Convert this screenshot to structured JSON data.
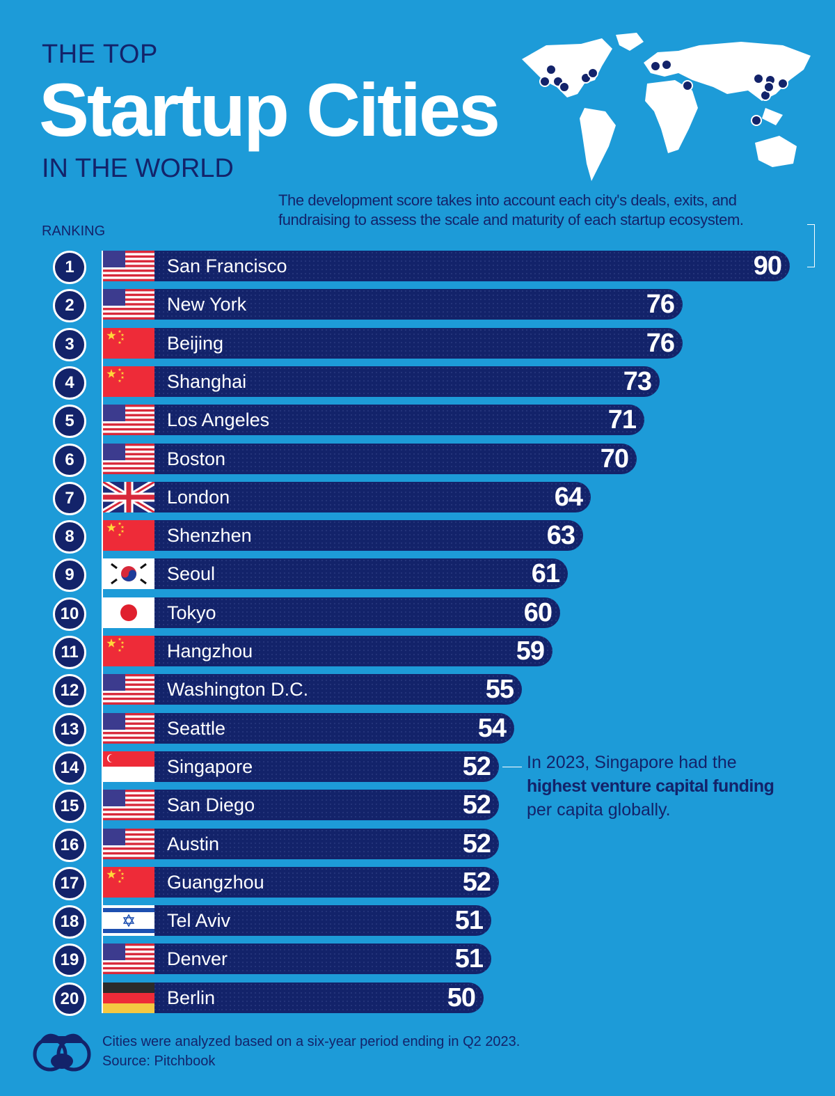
{
  "header": {
    "pre": "THE TOP",
    "title": "Startup Cities",
    "post": "IN THE WORLD"
  },
  "note": "The development score takes into account each city's deals, exits, and fundraising to assess the scale and maturity of each startup ecosystem.",
  "ranking_label": "RANKING",
  "annotation": {
    "pre": "In 2023, Singapore had the",
    "bold": "highest venture capital funding",
    "post": "per capita globally."
  },
  "footer": {
    "note": "Cities were analyzed based on a six-year period ending in Q2 2023.",
    "source": "Source: Pitchbook"
  },
  "colors": {
    "background": "#1d9bd8",
    "bar": "#13236a",
    "text": "#13236a"
  },
  "chart_data": {
    "type": "bar",
    "orientation": "horizontal",
    "ylabel": "RANKING",
    "categories": [
      "San Francisco",
      "New York",
      "Beijing",
      "Shanghai",
      "Los Angeles",
      "Boston",
      "London",
      "Shenzhen",
      "Seoul",
      "Tokyo",
      "Hangzhou",
      "Washington D.C.",
      "Seattle",
      "Singapore",
      "San Diego",
      "Austin",
      "Guangzhou",
      "Tel Aviv",
      "Denver",
      "Berlin"
    ],
    "ranks": [
      "1",
      "2",
      "3",
      "4",
      "5",
      "6",
      "7",
      "8",
      "9",
      "10",
      "11",
      "12",
      "13",
      "14",
      "15",
      "16",
      "17",
      "18",
      "19",
      "20"
    ],
    "flags": [
      "us",
      "us",
      "cn",
      "cn",
      "us",
      "us",
      "uk",
      "cn",
      "kr",
      "jp",
      "cn",
      "us",
      "us",
      "sg",
      "us",
      "us",
      "cn",
      "il",
      "us",
      "de"
    ],
    "values": [
      90,
      76,
      76,
      73,
      71,
      70,
      64,
      63,
      61,
      60,
      59,
      55,
      54,
      52,
      52,
      52,
      52,
      51,
      51,
      50
    ]
  }
}
